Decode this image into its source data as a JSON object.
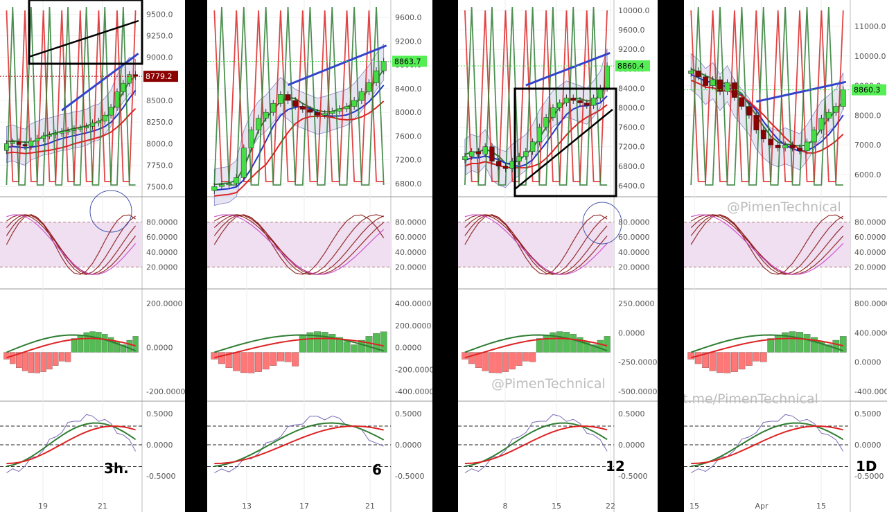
{
  "colors": {
    "up": "#44dd44",
    "down": "#8b0000",
    "maFast": "#dd2222",
    "maMid": "#2233cc",
    "maSlow": "#2e7d32",
    "band": "#6666bb",
    "trend": "#3344cc",
    "rsiZone": "#efdff0",
    "hist_up": "#55bb55",
    "hist_dn": "#ff7777",
    "box": "#000000"
  },
  "watermarks": [
    "@PimenTechnical",
    "@PimenTechnical",
    "t.me/PimenTechnical"
  ],
  "chart_data": [
    {
      "type": "candlestick",
      "timeframe_label": "3h.",
      "price_last": "8779.2",
      "price_ticks": [
        "9500.0",
        "9250.0",
        "9000.0",
        "8750.0",
        "8500.0",
        "8250.0",
        "8000.0",
        "7750.0",
        "7500.0"
      ],
      "price_range": [
        7400,
        9600
      ],
      "stoch_ticks": [
        "80.0000",
        "60.0000",
        "40.0000",
        "20.0000"
      ],
      "macd_ticks": [
        "200.0000",
        "0.0000",
        "-200.0000"
      ],
      "osc_ticks": [
        "0.5000",
        "0.0000",
        "-0.5000"
      ],
      "x_ticks": [
        "19",
        "21"
      ],
      "close": [
        8000,
        8020,
        7990,
        7970,
        8030,
        8060,
        8090,
        8100,
        8120,
        8140,
        8150,
        8170,
        8180,
        8200,
        8240,
        8260,
        8330,
        8420,
        8600,
        8700,
        8800,
        8780
      ]
    },
    {
      "type": "candlestick",
      "timeframe_label": "6",
      "price_last": "8863.7",
      "price_ticks": [
        "9600.0",
        "9200.0",
        "8800.0",
        "8400.0",
        "8000.0",
        "7600.0",
        "7200.0",
        "6800.0"
      ],
      "price_range": [
        6600,
        9800
      ],
      "stoch_ticks": [
        "80.0000",
        "60.0000",
        "40.0000",
        "20.0000"
      ],
      "macd_ticks": [
        "400.0000",
        "200.0000",
        "0.0000",
        "-200.0000",
        "-400.0000"
      ],
      "osc_ticks": [
        "0.5000",
        "0.0000",
        "-0.5000"
      ],
      "x_ticks": [
        "13",
        "17",
        "21"
      ],
      "close": [
        6750,
        6780,
        6800,
        6900,
        7400,
        7700,
        7900,
        8000,
        8150,
        8300,
        8200,
        8100,
        8050,
        8000,
        7950,
        7980,
        8020,
        8060,
        8100,
        8200,
        8350,
        8500,
        8700,
        8860
      ]
    },
    {
      "type": "candlestick",
      "timeframe_label": "12",
      "price_last": "8860.4",
      "price_ticks": [
        "10000.0",
        "9600.0",
        "9200.0",
        "8800.0",
        "8400.0",
        "8000.0",
        "7600.0",
        "7200.0",
        "6800.0",
        "6400.0"
      ],
      "price_range": [
        6200,
        10100
      ],
      "stoch_ticks": [
        "80.0000",
        "60.0000",
        "40.0000",
        "20.0000"
      ],
      "macd_ticks": [
        "250.0000",
        "0.0000",
        "-250.0000",
        "-500.0000"
      ],
      "osc_ticks": [
        "0.5000",
        "0.0000",
        "-0.5000"
      ],
      "x_ticks": [
        "8",
        "15",
        "22"
      ],
      "close": [
        7000,
        7100,
        7050,
        7200,
        6900,
        6800,
        6750,
        6900,
        7000,
        7100,
        7300,
        7600,
        7800,
        8000,
        8100,
        8200,
        8150,
        8100,
        8050,
        8200,
        8400,
        8860
      ]
    },
    {
      "type": "candlestick",
      "timeframe_label": "1D",
      "price_last": "8860.3",
      "price_ticks": [
        "11000.0",
        "10000.0",
        "9000.0",
        "8000.0",
        "7000.0",
        "6000.0"
      ],
      "price_range": [
        5300,
        11700
      ],
      "stoch_ticks": [
        "80.0000",
        "60.0000",
        "40.0000",
        "20.0000"
      ],
      "macd_ticks": [
        "800.0000",
        "400.0000",
        "0.0000",
        "-400.0000"
      ],
      "osc_ticks": [
        "0.5000",
        "0.0000",
        "-0.5000"
      ],
      "x_ticks": [
        "15",
        "Apr",
        "15"
      ],
      "close": [
        9500,
        9300,
        9000,
        9200,
        8800,
        9100,
        8600,
        8300,
        8000,
        7500,
        7200,
        7000,
        6900,
        7000,
        6900,
        6800,
        7100,
        7500,
        7900,
        8100,
        8300,
        8860
      ]
    }
  ]
}
